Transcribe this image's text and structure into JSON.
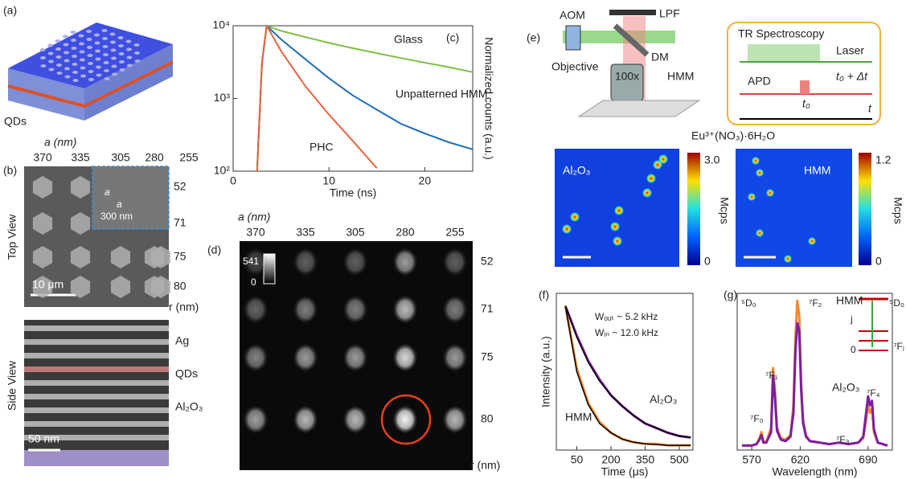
{
  "figure": {
    "panel_labels": [
      "(a)",
      "(b)",
      "(c)",
      "(d)",
      "(e)",
      "(f)",
      "(g)"
    ],
    "panel_a": {
      "qds": "QDs"
    },
    "panel_b": {
      "a_axis": "a (nm)",
      "a_values": [
        "370",
        "335",
        "305",
        "280",
        "255"
      ],
      "r_axis": "r (nm)",
      "r_values": [
        "52",
        "71",
        "75",
        "80"
      ],
      "top_view": "Top View",
      "scale_top": "10 μm",
      "inset_scale": "300 nm",
      "inset_a": [
        "a",
        "a"
      ],
      "side_view": "Side View",
      "layers": [
        "Ag",
        "QDs",
        "Al₂O₃"
      ],
      "scale_side": "50 nm"
    },
    "panel_d": {
      "a_axis": "a (nm)",
      "a_values": [
        "370",
        "335",
        "305",
        "280",
        "255"
      ],
      "r_axis": "r (nm)",
      "r_values": [
        "52",
        "71",
        "75",
        "80"
      ],
      "colorbar": [
        "541",
        "0"
      ]
    },
    "panel_e": {
      "setup": [
        "AOM",
        "LPF",
        "DM",
        "Objective",
        "100x",
        "HMM",
        "Eu³⁺(NO₃)·6H₂O"
      ],
      "tr_box": {
        "title": "TR Spectroscopy",
        "laser": "Laser",
        "apd": "APD",
        "delay": "t₀ + Δt",
        "t0": "t₀",
        "t": "t"
      },
      "maps": [
        {
          "label": "Al₂O₃",
          "cbar_max": "3.0",
          "cbar_min": "0",
          "unit": "Mcps"
        },
        {
          "label": "HMM",
          "cbar_max": "1.2",
          "cbar_min": "0",
          "unit": "Mcps"
        }
      ]
    }
  },
  "chart_data": [
    {
      "type": "line",
      "log_y": true,
      "xlabel": "Time (ns)",
      "ylabel": "Normalized counts (a.u.)",
      "xlim": [
        0,
        25
      ],
      "xticks": [
        0,
        10,
        20
      ],
      "ylim": [
        100,
        10000
      ],
      "yticks": [
        {
          "value": 100,
          "label": "10²"
        },
        {
          "value": 1000,
          "label": "10³"
        },
        {
          "value": 10000,
          "label": "10⁴"
        }
      ],
      "x": [
        2.5,
        3,
        3.5,
        5,
        7.5,
        10,
        12.5,
        15,
        17.5,
        20,
        22.5,
        25
      ],
      "series": [
        {
          "name": "Glass",
          "color": "#7dc242",
          "values": [
            100,
            3000,
            10000,
            8500,
            7000,
            5800,
            4900,
            4200,
            3600,
            3100,
            2700,
            2300
          ]
        },
        {
          "name": "Unpatterned HMM",
          "color": "#1f6fb5",
          "values": [
            100,
            3000,
            10000,
            6500,
            3500,
            1900,
            1100,
            700,
            450,
            330,
            250,
            200
          ]
        },
        {
          "name": "PHC",
          "color": "#e8643c",
          "values": [
            100,
            3000,
            10000,
            4500,
            1500,
            600,
            260,
            110,
            null,
            null,
            null,
            null
          ]
        }
      ]
    },
    {
      "type": "line",
      "xlabel": "Time (μs)",
      "ylabel": "Intensity (a.u.)",
      "xlim": [
        -40,
        560
      ],
      "xticks": [
        50,
        200,
        350,
        500
      ],
      "ylim": [
        0,
        1
      ],
      "annotations": [
        "Wₒᵤₜ ~ 5.2 kHz",
        "Wᵢₙ ~ 12.0 kHz"
      ],
      "x": [
        0,
        50,
        100,
        150,
        200,
        250,
        300,
        350,
        400,
        450,
        500,
        550
      ],
      "series": [
        {
          "name": "Al₂O₃",
          "color": "#7b1fa2",
          "values": [
            0.92,
            0.73,
            0.57,
            0.45,
            0.35,
            0.28,
            0.22,
            0.17,
            0.14,
            0.11,
            0.09,
            0.08
          ]
        },
        {
          "name": "HMM",
          "color": "#f5882a",
          "values": [
            0.92,
            0.52,
            0.3,
            0.18,
            0.11,
            0.07,
            0.05,
            0.04,
            0.04,
            0.03,
            0.03,
            0.03
          ]
        },
        {
          "color": "#000000",
          "values": [
            0.92,
            0.72,
            0.56,
            0.44,
            0.35,
            0.28,
            0.22,
            0.17,
            0.14,
            0.11,
            0.09,
            0.08
          ]
        },
        {
          "color": "#000000",
          "values": [
            0.92,
            0.5,
            0.29,
            0.17,
            0.11,
            0.07,
            0.05,
            0.04,
            0.035,
            0.03,
            0.03,
            0.03
          ]
        }
      ]
    },
    {
      "type": "line",
      "xlabel": "Wavelength (nm)",
      "xlim": [
        555,
        715
      ],
      "xticks": [
        570,
        620,
        690
      ],
      "ylim": [
        0,
        1.05
      ],
      "annotations": [
        "⁵D₀",
        "⁷F₀",
        "⁷F₁",
        "⁷F₂",
        "⁷F₃",
        "⁷F₄",
        "⁵D₀",
        "⁷Fⱼ",
        "j",
        "0"
      ],
      "x": [
        560,
        570,
        575,
        578,
        580,
        582,
        585,
        590,
        592,
        594,
        596,
        600,
        605,
        610,
        613,
        615,
        617,
        619,
        621,
        623,
        626,
        630,
        640,
        650,
        660,
        670,
        680,
        685,
        688,
        690,
        692,
        694,
        696,
        700,
        710
      ],
      "series": [
        {
          "name": "HMM",
          "color": "#f5882a",
          "values": [
            0.03,
            0.03,
            0.04,
            0.08,
            0.12,
            0.06,
            0.05,
            0.15,
            0.55,
            0.4,
            0.15,
            0.08,
            0.07,
            0.1,
            0.3,
            0.75,
            1.0,
            0.9,
            0.45,
            0.2,
            0.1,
            0.06,
            0.05,
            0.04,
            0.05,
            0.04,
            0.05,
            0.08,
            0.2,
            0.3,
            0.25,
            0.28,
            0.12,
            0.05,
            0.03
          ]
        },
        {
          "name": "Al₂O₃",
          "color": "#7b1fa2",
          "values": [
            0.03,
            0.03,
            0.04,
            0.07,
            0.1,
            0.05,
            0.05,
            0.12,
            0.5,
            0.35,
            0.13,
            0.07,
            0.06,
            0.09,
            0.25,
            0.65,
            0.85,
            0.8,
            0.4,
            0.18,
            0.09,
            0.06,
            0.05,
            0.04,
            0.05,
            0.04,
            0.05,
            0.09,
            0.25,
            0.36,
            0.3,
            0.33,
            0.14,
            0.05,
            0.03
          ]
        }
      ]
    }
  ]
}
